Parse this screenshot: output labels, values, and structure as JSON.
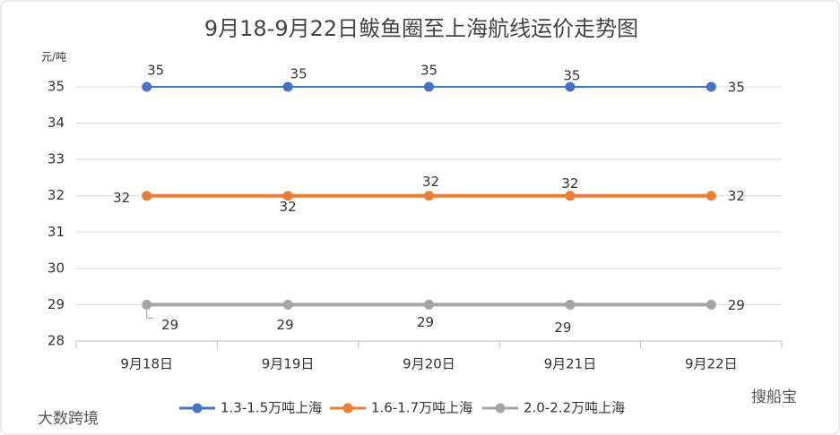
{
  "chart_data": {
    "type": "line",
    "title": "9月18-9月22日鲅鱼圈至上海航线运价走势图",
    "y_unit": "元/吨",
    "categories": [
      "9月18日",
      "9月19日",
      "9月20日",
      "9月21日",
      "9月22日"
    ],
    "series": [
      {
        "name": "1.3-1.5万吨上海",
        "color": "#4472c4",
        "values": [
          35,
          35,
          35,
          35,
          35
        ]
      },
      {
        "name": "1.6-1.7万吨上海",
        "color": "#ed7d31",
        "values": [
          32,
          32,
          32,
          32,
          32
        ]
      },
      {
        "name": "2.0-2.2万吨上海",
        "color": "#a5a5a5",
        "values": [
          29,
          29,
          29,
          29,
          29
        ]
      }
    ],
    "ylim": [
      28,
      35
    ],
    "yticks": [
      28,
      29,
      30,
      31,
      32,
      33,
      34,
      35
    ],
    "grid": true,
    "legend": "bottom",
    "watermarks": [
      "大数跨境",
      "搜船宝"
    ]
  }
}
